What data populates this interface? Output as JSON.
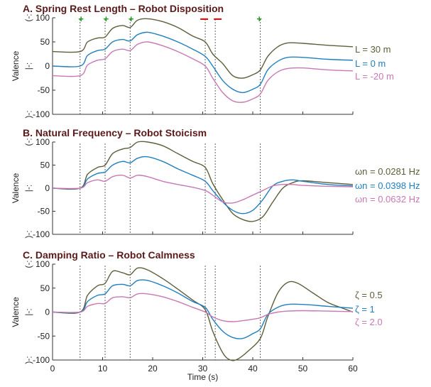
{
  "colors": {
    "olive": "#5e5e3c",
    "blue": "#1f7fbf",
    "pink": "#c878b4",
    "plus": "#1a9a1a",
    "minus": "#cc1a1a"
  },
  "emoticons": {
    "happy": ":-)",
    "neutral": ":-|",
    "sad": ":-("
  },
  "chart_data": [
    {
      "type": "line",
      "title": "A. Spring Rest Length – Robot Disposition",
      "ylabel": "Valence",
      "xlim": [
        0,
        60
      ],
      "ylim": [
        -100,
        100
      ],
      "yticks": [
        -100,
        -50,
        0,
        50,
        100
      ],
      "event_lines_x": [
        5.5,
        10.5,
        15.5,
        30.5,
        32.5,
        41.5
      ],
      "markers": [
        {
          "x": 5.7,
          "symbol": "+"
        },
        {
          "x": 10.7,
          "symbol": "+"
        },
        {
          "x": 15.7,
          "symbol": "+"
        },
        {
          "x": 30.3,
          "symbol": "–"
        },
        {
          "x": 33.0,
          "symbol": "–"
        },
        {
          "x": 41.3,
          "symbol": "+"
        }
      ],
      "series": [
        {
          "name": "L = 30 m",
          "color": "olive",
          "x": [
            0,
            5.5,
            7,
            9,
            10.5,
            12,
            14,
            15.5,
            17,
            19,
            22,
            25,
            28,
            30.5,
            32,
            34,
            36,
            38,
            40,
            41.5,
            43,
            45,
            47,
            50,
            55,
            60
          ],
          "y": [
            30,
            30,
            50,
            58,
            60,
            78,
            84,
            80,
            95,
            98,
            92,
            80,
            62,
            50,
            25,
            5,
            -20,
            -25,
            -18,
            -8,
            20,
            40,
            48,
            47,
            43,
            40
          ]
        },
        {
          "name": "L = 0 m",
          "color": "blue",
          "x": [
            0,
            5.5,
            7,
            9,
            10.5,
            12,
            14,
            15.5,
            17,
            19,
            22,
            25,
            28,
            30.5,
            32,
            34,
            36,
            38,
            40,
            41.5,
            43,
            45,
            47,
            50,
            55,
            60
          ],
          "y": [
            0,
            0,
            22,
            32,
            35,
            50,
            55,
            52,
            65,
            70,
            62,
            50,
            35,
            20,
            0,
            -30,
            -48,
            -55,
            -48,
            -38,
            -8,
            10,
            18,
            18,
            14,
            12
          ]
        },
        {
          "name": "L = -20 m",
          "color": "pink",
          "x": [
            0,
            5.5,
            7,
            9,
            10.5,
            12,
            14,
            15.5,
            17,
            19,
            22,
            25,
            28,
            30.5,
            32,
            34,
            36,
            38,
            40,
            41.5,
            43,
            45,
            47,
            50,
            55,
            60
          ],
          "y": [
            -20,
            -20,
            2,
            12,
            15,
            30,
            35,
            32,
            45,
            50,
            42,
            30,
            15,
            0,
            -25,
            -55,
            -72,
            -75,
            -68,
            -58,
            -30,
            -12,
            -5,
            -4,
            -8,
            -10
          ]
        }
      ]
    },
    {
      "type": "line",
      "title": "B. Natural Frequency – Robot Stoicism",
      "ylabel": "Valence",
      "xlim": [
        0,
        60
      ],
      "ylim": [
        -100,
        100
      ],
      "yticks": [
        -100,
        -50,
        0,
        50,
        100
      ],
      "event_lines_x": [
        5.5,
        10.5,
        15.5,
        30.5,
        32.5,
        41.5
      ],
      "markers": [],
      "series": [
        {
          "name": "ωn = 0.0281 Hz",
          "color": "olive",
          "x": [
            0,
            5.5,
            7,
            9,
            10.5,
            12,
            14,
            15.5,
            17,
            19,
            22,
            25,
            28,
            30.5,
            32,
            34,
            36,
            38,
            40,
            42,
            44,
            46,
            48,
            50,
            55,
            60
          ],
          "y": [
            0,
            0,
            30,
            45,
            50,
            75,
            85,
            88,
            100,
            100,
            92,
            75,
            58,
            45,
            10,
            -25,
            -55,
            -68,
            -72,
            -62,
            -30,
            0,
            12,
            16,
            12,
            8
          ]
        },
        {
          "name": "ωn = 0.0398 Hz",
          "color": "blue",
          "x": [
            0,
            5.5,
            7,
            9,
            10.5,
            12,
            14,
            15.5,
            17,
            19,
            22,
            25,
            28,
            30.5,
            32,
            34,
            36,
            38,
            40,
            42,
            44,
            46,
            48,
            50,
            55,
            60
          ],
          "y": [
            0,
            0,
            20,
            32,
            35,
            50,
            58,
            55,
            65,
            68,
            58,
            42,
            28,
            15,
            -5,
            -30,
            -48,
            -55,
            -48,
            -25,
            5,
            15,
            18,
            15,
            8,
            5
          ]
        },
        {
          "name": "ωn = 0.0632 Hz",
          "color": "pink",
          "x": [
            0,
            5.5,
            7,
            9,
            10.5,
            12,
            14,
            15.5,
            17,
            19,
            22,
            25,
            28,
            30.5,
            32,
            34,
            36,
            38,
            40,
            42,
            44,
            46,
            48,
            50,
            55,
            60
          ],
          "y": [
            0,
            0,
            12,
            18,
            15,
            25,
            28,
            22,
            28,
            25,
            15,
            8,
            2,
            -5,
            -15,
            -30,
            -32,
            -25,
            -15,
            -5,
            5,
            8,
            8,
            6,
            4,
            3
          ]
        }
      ]
    },
    {
      "type": "line",
      "title": "C. Damping Ratio – Robot Calmness",
      "ylabel": "Valence",
      "xlabel": "Time (s)",
      "xlim": [
        0,
        60
      ],
      "ylim": [
        -100,
        100
      ],
      "yticks": [
        -100,
        -50,
        0,
        50,
        100
      ],
      "xticks": [
        0,
        10,
        20,
        30,
        40,
        50,
        60
      ],
      "event_lines_x": [
        5.5,
        10.5,
        15.5,
        30.5,
        32.5,
        41.5
      ],
      "markers": [],
      "series": [
        {
          "name": "ζ = 0.5",
          "color": "olive",
          "x": [
            0,
            5.5,
            7,
            9,
            10.5,
            12,
            14,
            15.5,
            17,
            19,
            22,
            25,
            28,
            30.5,
            32,
            34,
            35.5,
            37,
            39,
            41.5,
            43,
            45,
            47,
            49,
            52,
            55,
            58,
            60
          ],
          "y": [
            0,
            0,
            35,
            55,
            60,
            85,
            82,
            78,
            92,
            88,
            70,
            48,
            25,
            5,
            -40,
            -85,
            -100,
            -98,
            -82,
            -55,
            -10,
            40,
            62,
            60,
            40,
            20,
            8,
            0
          ]
        },
        {
          "name": "ζ = 1",
          "color": "blue",
          "x": [
            0,
            5.5,
            7,
            9,
            10.5,
            12,
            14,
            15.5,
            17,
            19,
            22,
            25,
            28,
            30.5,
            32,
            34,
            36,
            38,
            40,
            41.5,
            43,
            45,
            47,
            50,
            55,
            60
          ],
          "y": [
            0,
            0,
            22,
            35,
            38,
            55,
            58,
            55,
            66,
            66,
            55,
            40,
            22,
            10,
            -15,
            -40,
            -53,
            -55,
            -45,
            -35,
            -5,
            10,
            16,
            16,
            12,
            8
          ]
        },
        {
          "name": "ζ = 2.0",
          "color": "pink",
          "x": [
            0,
            5.5,
            7,
            9,
            10.5,
            12,
            14,
            15.5,
            17,
            19,
            22,
            25,
            28,
            30.5,
            32,
            34,
            36,
            38,
            40,
            41.5,
            43,
            45,
            47,
            50,
            55,
            60
          ],
          "y": [
            0,
            0,
            12,
            18,
            18,
            30,
            32,
            30,
            38,
            38,
            32,
            22,
            10,
            0,
            -10,
            -18,
            -20,
            -18,
            -15,
            -12,
            -5,
            0,
            2,
            3,
            2,
            1
          ]
        }
      ]
    }
  ]
}
